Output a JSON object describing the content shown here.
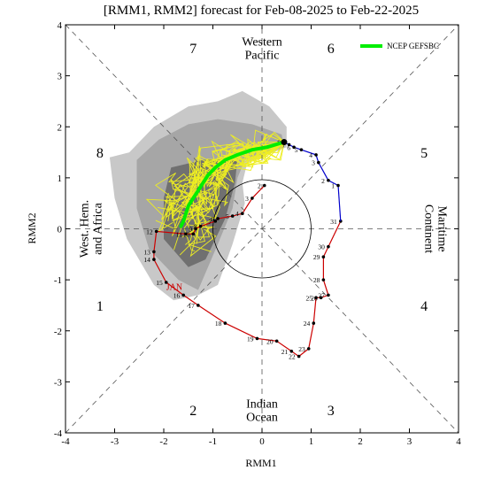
{
  "chart_data": {
    "type": "line",
    "title": "[RMM1, RMM2] forecast for Feb-08-2025 to Feb-22-2025",
    "xlabel": "RMM1",
    "ylabel": "RMM2",
    "xlim": [
      -4,
      4
    ],
    "ylim": [
      -4,
      4
    ],
    "x_ticks": [
      "-4",
      "-3",
      "-2",
      "-1",
      "0",
      "1",
      "2",
      "3",
      "4"
    ],
    "y_ticks": [
      "-4",
      "-3",
      "-2",
      "-1",
      "0",
      "1",
      "2",
      "3",
      "4"
    ],
    "grid": false,
    "legend": {
      "position": "top-right",
      "entries": [
        {
          "name": "NCEP GEFSBC",
          "color": "#00ee00"
        }
      ]
    },
    "unit_circle_radius": 1,
    "phase_numbers": [
      {
        "text": "1",
        "x": -3.3,
        "y": -1.5
      },
      {
        "text": "2",
        "x": -1.4,
        "y": -3.55
      },
      {
        "text": "3",
        "x": 1.4,
        "y": -3.55
      },
      {
        "text": "4",
        "x": 3.3,
        "y": -1.5
      },
      {
        "text": "5",
        "x": 3.3,
        "y": 1.5
      },
      {
        "text": "6",
        "x": 1.4,
        "y": 3.55
      },
      {
        "text": "7",
        "x": -1.4,
        "y": 3.55
      },
      {
        "text": "8",
        "x": -3.3,
        "y": 1.5
      }
    ],
    "region_labels": [
      {
        "lines": [
          "Western",
          "Pacific"
        ],
        "x": 0,
        "y": 3.55,
        "rotate": 0
      },
      {
        "lines": [
          "Indian",
          "Ocean"
        ],
        "x": 0,
        "y": -3.55,
        "rotate": 0
      },
      {
        "lines": [
          "West. Hem.",
          "and Africa"
        ],
        "x": -3.5,
        "y": 0,
        "rotate": -90
      },
      {
        "lines": [
          "Maritime",
          "Continent"
        ],
        "x": 3.55,
        "y": 0,
        "rotate": 90
      }
    ],
    "month_label": {
      "text": "JAN",
      "x": -1.95,
      "y": -1.2,
      "color": "#cc0000"
    },
    "observed_january": {
      "name": "JAN",
      "color": "#cc0000",
      "points": [
        {
          "day": "2",
          "x": 0.05,
          "y": 0.85
        },
        {
          "day": "3",
          "x": -0.2,
          "y": 0.6
        },
        {
          "day": "4",
          "x": -0.4,
          "y": 0.3
        },
        {
          "day": "5",
          "x": -0.6,
          "y": 0.25
        },
        {
          "day": "6",
          "x": -0.9,
          "y": 0.2
        },
        {
          "day": "7",
          "x": -0.95,
          "y": 0.15
        },
        {
          "day": "8",
          "x": -1.25,
          "y": 0.05
        },
        {
          "day": "9",
          "x": -1.35,
          "y": 0.0
        },
        {
          "day": "10",
          "x": -1.4,
          "y": -0.1
        },
        {
          "day": "11",
          "x": -1.55,
          "y": -0.1
        },
        {
          "day": "12",
          "x": -2.15,
          "y": -0.05
        },
        {
          "day": "13",
          "x": -2.2,
          "y": -0.45
        },
        {
          "day": "14",
          "x": -2.2,
          "y": -0.6
        },
        {
          "day": "15",
          "x": -1.95,
          "y": -1.05
        },
        {
          "day": "16",
          "x": -1.6,
          "y": -1.3
        },
        {
          "day": "17",
          "x": -1.3,
          "y": -1.5
        },
        {
          "day": "18",
          "x": -0.75,
          "y": -1.85
        },
        {
          "day": "19",
          "x": -0.1,
          "y": -2.15
        },
        {
          "day": "20",
          "x": 0.3,
          "y": -2.2
        },
        {
          "day": "21",
          "x": 0.6,
          "y": -2.4
        },
        {
          "day": "22",
          "x": 0.75,
          "y": -2.5
        },
        {
          "day": "23",
          "x": 0.95,
          "y": -2.35
        },
        {
          "day": "24",
          "x": 1.05,
          "y": -1.85
        },
        {
          "day": "25",
          "x": 1.1,
          "y": -1.35
        },
        {
          "day": "26",
          "x": 1.2,
          "y": -1.35
        },
        {
          "day": "27",
          "x": 1.35,
          "y": -1.3
        },
        {
          "day": "28",
          "x": 1.25,
          "y": -1.0
        },
        {
          "day": "29",
          "x": 1.25,
          "y": -0.55
        },
        {
          "day": "30",
          "x": 1.35,
          "y": -0.35
        },
        {
          "day": "31",
          "x": 1.6,
          "y": 0.15
        }
      ]
    },
    "observed_february": {
      "color": "#0000cc",
      "points": [
        {
          "day": "1",
          "x": 1.55,
          "y": 0.85
        },
        {
          "day": "2",
          "x": 1.35,
          "y": 0.95
        },
        {
          "day": "3",
          "x": 1.15,
          "y": 1.3
        },
        {
          "day": "4",
          "x": 1.1,
          "y": 1.45
        },
        {
          "day": "5",
          "x": 0.8,
          "y": 1.55
        },
        {
          "day": "6",
          "x": 0.65,
          "y": 1.6
        },
        {
          "day": "7",
          "x": 0.55,
          "y": 1.65
        },
        {
          "day": "8",
          "x": 0.45,
          "y": 1.7
        }
      ]
    },
    "ensemble_mean": {
      "name": "NCEP GEFSBC",
      "color": "#00ee00",
      "points": [
        {
          "x": 0.45,
          "y": 1.7
        },
        {
          "x": 0.1,
          "y": 1.6
        },
        {
          "x": -0.2,
          "y": 1.55
        },
        {
          "x": -0.5,
          "y": 1.45
        },
        {
          "x": -0.75,
          "y": 1.35
        },
        {
          "x": -0.95,
          "y": 1.2
        },
        {
          "x": -1.1,
          "y": 1.05
        },
        {
          "x": -1.2,
          "y": 0.9
        },
        {
          "x": -1.3,
          "y": 0.75
        },
        {
          "x": -1.4,
          "y": 0.6
        },
        {
          "x": -1.5,
          "y": 0.45
        },
        {
          "x": -1.55,
          "y": 0.3
        },
        {
          "x": -1.6,
          "y": 0.15
        },
        {
          "x": -1.65,
          "y": 0.05
        }
      ]
    },
    "spread_regions": [
      {
        "name": "outer-spread",
        "color": "#c8c8c8",
        "polygon": [
          [
            -3.1,
            1.4
          ],
          [
            -2.7,
            1.5
          ],
          [
            -2.2,
            2.0
          ],
          [
            -1.5,
            2.4
          ],
          [
            -0.9,
            2.5
          ],
          [
            -0.4,
            2.7
          ],
          [
            0.15,
            2.4
          ],
          [
            0.5,
            2.0
          ],
          [
            0.5,
            1.6
          ],
          [
            -0.3,
            1.3
          ],
          [
            -0.4,
            0.9
          ],
          [
            -0.35,
            0.5
          ],
          [
            -0.6,
            -0.3
          ],
          [
            -0.9,
            -1.1
          ],
          [
            -1.3,
            -1.3
          ],
          [
            -1.8,
            -1.4
          ],
          [
            -2.2,
            -1.1
          ],
          [
            -2.75,
            -0.2
          ],
          [
            -3.0,
            0.6
          ]
        ]
      },
      {
        "name": "middle-spread",
        "color": "#a6a6a6",
        "polygon": [
          [
            -2.55,
            1.35
          ],
          [
            -2.1,
            1.75
          ],
          [
            -1.5,
            2.05
          ],
          [
            -0.9,
            2.15
          ],
          [
            -0.2,
            2.05
          ],
          [
            0.4,
            1.85
          ],
          [
            0.45,
            1.6
          ],
          [
            -0.35,
            1.35
          ],
          [
            -0.5,
            1.0
          ],
          [
            -0.6,
            0.4
          ],
          [
            -0.9,
            -0.3
          ],
          [
            -1.3,
            -1.2
          ],
          [
            -1.7,
            -1.0
          ],
          [
            -2.3,
            -0.4
          ],
          [
            -2.55,
            0.4
          ]
        ]
      },
      {
        "name": "inner-spread",
        "color": "#707070",
        "polygon": [
          [
            -1.85,
            1.2
          ],
          [
            -1.2,
            1.35
          ],
          [
            -0.5,
            1.4
          ],
          [
            -0.55,
            0.9
          ],
          [
            -0.75,
            0.2
          ],
          [
            -1.15,
            -0.6
          ],
          [
            -1.5,
            -0.75
          ],
          [
            -2.0,
            -0.2
          ],
          [
            -2.0,
            0.6
          ]
        ]
      }
    ],
    "ensemble_member_count": 30,
    "colors": {
      "member_lines": "#eeee22",
      "axes": "#000000",
      "guide_lines": "#555555"
    }
  }
}
